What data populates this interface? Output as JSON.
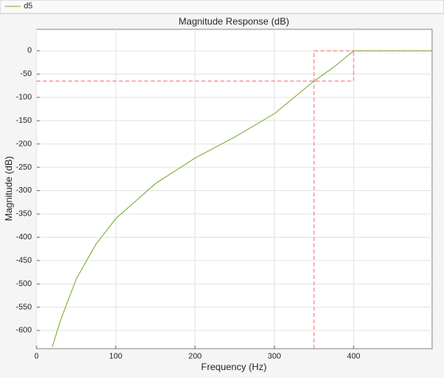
{
  "chart_data": {
    "type": "line",
    "title": "Magnitude Response (dB)",
    "x_label": "Frequency (Hz)",
    "y_label": "Magnitude (dB)",
    "series": [
      {
        "name": "d5",
        "color": "#77ac30",
        "x": [
          20,
          30,
          50,
          75,
          100,
          150,
          200,
          250,
          300,
          350,
          375,
          400,
          450,
          499
        ],
        "values": [
          -635,
          -580,
          -490,
          -415,
          -360,
          -285,
          -230,
          -185,
          -135,
          -65,
          -35,
          0,
          0,
          0
        ]
      }
    ],
    "masks": [
      {
        "color": "#ff6b6b",
        "x": [
          0,
          400,
          400
        ],
        "values": [
          -65,
          -65,
          0
        ]
      },
      {
        "color": "#ff6b6b",
        "x": [
          350,
          350,
          499
        ],
        "values": [
          -639,
          0,
          0
        ]
      }
    ],
    "xlim": [
      0,
      499
    ],
    "xticks": [
      0,
      100,
      200,
      300,
      400
    ],
    "ylim": [
      -639,
      46
    ],
    "yticks": [
      0,
      -50,
      -100,
      -150,
      -200,
      -250,
      -300,
      -350,
      -400,
      -450,
      -500,
      -550,
      -600
    ],
    "grid": true
  }
}
